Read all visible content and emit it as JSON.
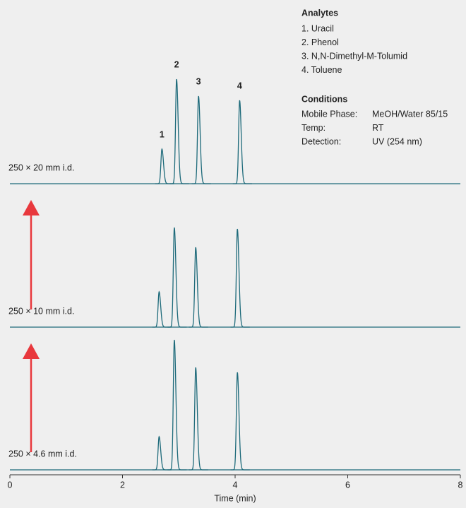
{
  "chart_data": {
    "type": "chromatogram",
    "xlabel": "Time (min)",
    "xlim": [
      0,
      8
    ],
    "xticks": [
      0,
      2,
      4,
      6,
      8
    ],
    "ylim": [
      0,
      200
    ],
    "color": "#1d6a7a",
    "peak_labels": [
      "1",
      "2",
      "3",
      "4"
    ],
    "series": [
      {
        "name": "250 × 20 mm i.d.",
        "x": [
          2.7,
          2.96,
          3.35,
          4.08
        ],
        "values": [
          49,
          148,
          124,
          118
        ]
      },
      {
        "name": "250 × 10 mm i.d.",
        "x": [
          2.65,
          2.92,
          3.3,
          4.04
        ],
        "values": [
          50,
          141,
          113,
          139
        ]
      },
      {
        "name": "250 × 4.6 mm i.d.",
        "x": [
          2.65,
          2.92,
          3.3,
          4.04
        ],
        "values": [
          47,
          184,
          145,
          138
        ]
      }
    ],
    "analytes_title": "Analytes",
    "analytes": [
      "1. Uracil",
      "2. Phenol",
      "3. N,N-Dimethyl-M-Tolumid",
      "4. Toluene"
    ],
    "conditions_title": "Conditions",
    "conditions": [
      [
        "Mobile Phase:",
        "MeOH/Water 85/15"
      ],
      [
        "Temp:",
        "RT"
      ],
      [
        "Detection:",
        "UV (254 nm)"
      ]
    ]
  }
}
